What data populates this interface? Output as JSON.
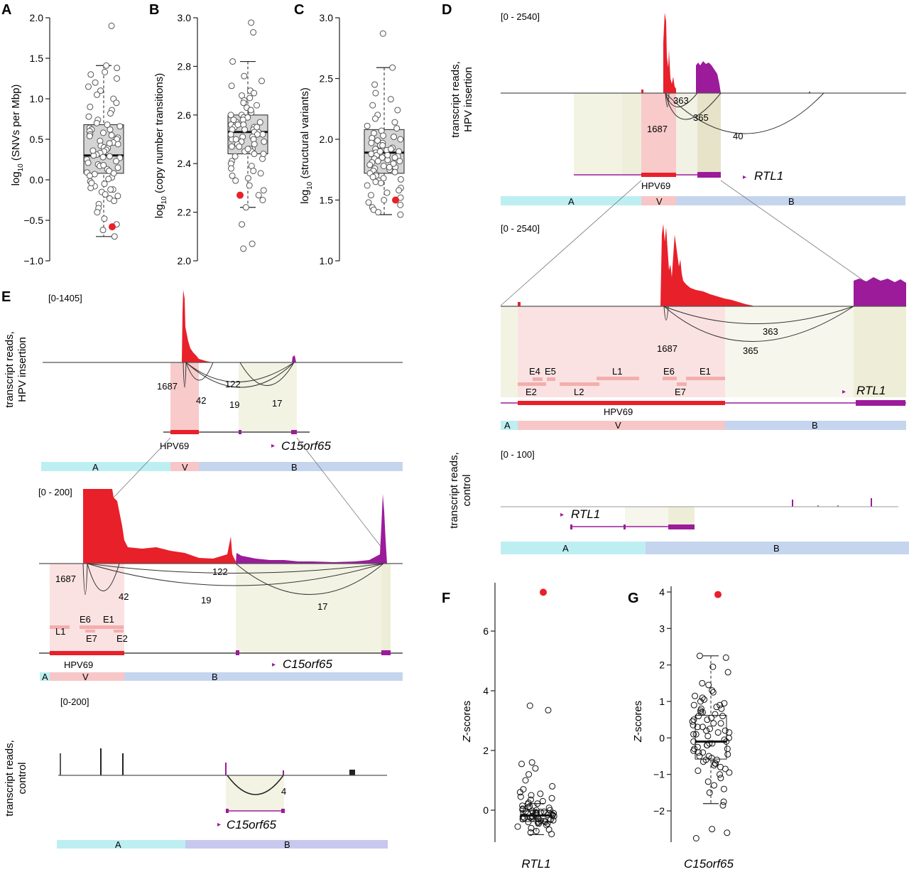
{
  "panels": {
    "A": {
      "letter": "A",
      "ylabel": "log",
      "ylabel_sub": "10",
      "ylabel_rest": " (SNVs per Mbp)",
      "ticks": [
        "2.0",
        "1.5",
        "1.0",
        "0.5",
        "0.0",
        "−0.5",
        "−1.0"
      ]
    },
    "B": {
      "letter": "B",
      "ylabel": "log",
      "ylabel_sub": "10",
      "ylabel_rest": " (copy number transitions)",
      "ticks": [
        "3.0",
        "2.8",
        "2.6",
        "2.4",
        "2.2",
        "2.0"
      ]
    },
    "C": {
      "letter": "C",
      "ylabel": "log",
      "ylabel_sub": "10",
      "ylabel_rest": " (structural variants)",
      "ticks": [
        "3.0",
        "2.5",
        "2.0",
        "1.5",
        "1.0"
      ]
    },
    "D": {
      "letter": "D",
      "track1_range": "[0 - 2540]",
      "track2_range": "[0 - 2540]",
      "track3_range": "[0 - 100]",
      "side1a": "transcript reads,",
      "side1b": "HPV insertion",
      "side2a": "transcript reads,",
      "side2b": "control",
      "junctions": [
        "363",
        "365",
        "40",
        "1687"
      ],
      "junctions_zoom": [
        "363",
        "365",
        "1687"
      ],
      "gene": "RTL1",
      "virus": "HPV69",
      "hpv_genes": [
        "E4",
        "E5",
        "L1",
        "E6",
        "E1",
        "E2",
        "L2",
        "E7"
      ],
      "segments": [
        "A",
        "V",
        "B"
      ]
    },
    "E": {
      "letter": "E",
      "track1_range": "[0-1405]",
      "track2_range": "[0 - 200]",
      "track3_range": "[0-200]",
      "side1a": "transcript reads,",
      "side1b": "HPV insertion",
      "side2a": "transcript reads,",
      "side2b": "control",
      "junctions": [
        "1687",
        "122",
        "42",
        "19",
        "17"
      ],
      "control_junction": "4",
      "gene": "C15orf65",
      "virus": "HPV69",
      "hpv_genes": [
        "L1",
        "E6",
        "E1",
        "E7",
        "E2"
      ],
      "segments": [
        "A",
        "V",
        "B"
      ]
    },
    "F": {
      "letter": "F",
      "ylabel": "Z-scores",
      "ylabel_italic": "Z",
      "ylabel_rest": "-scores",
      "ticks": [
        "6",
        "4",
        "2",
        "0"
      ],
      "xlabel": "RTL1"
    },
    "G": {
      "letter": "G",
      "ylabel": "Z-scores",
      "ylabel_italic": "Z",
      "ylabel_rest": "-scores",
      "ticks": [
        "4",
        "3",
        "2",
        "1",
        "0",
        "−1",
        "−2"
      ],
      "xlabel": "C15orf65"
    }
  },
  "colors": {
    "highlight": "#e8202a",
    "viral": "#e8202a",
    "gene": "#9b1b9b",
    "segA": "#bdeff2",
    "segV": "#f7c7c7",
    "segB": "#c5d5ee",
    "regionB": "#eeeed8",
    "regionV": "#fadede",
    "box": "#d4d4d4"
  },
  "chart_data": [
    {
      "type": "box",
      "panel": "A",
      "ylabel": "log10(SNVs per Mbp)",
      "ylim": [
        -1.0,
        2.0
      ],
      "box": {
        "q1": 0.08,
        "median": 0.3,
        "q3": 0.68,
        "whisker_low": -0.7,
        "whisker_high": 1.41
      },
      "highlight": -0.58,
      "points": [
        1.9,
        1.41,
        1.38,
        1.33,
        1.3,
        1.25,
        1.2,
        1.15,
        1.1,
        1.05,
        1.0,
        0.95,
        0.9,
        0.86,
        0.82,
        0.78,
        0.74,
        0.7,
        0.68,
        0.66,
        0.64,
        0.62,
        0.6,
        0.58,
        0.56,
        0.54,
        0.52,
        0.5,
        0.48,
        0.46,
        0.44,
        0.42,
        0.4,
        0.39,
        0.37,
        0.35,
        0.33,
        0.31,
        0.3,
        0.29,
        0.27,
        0.25,
        0.23,
        0.21,
        0.19,
        0.17,
        0.15,
        0.13,
        0.11,
        0.09,
        0.07,
        0.05,
        0.03,
        0.01,
        -0.02,
        -0.05,
        -0.08,
        -0.1,
        -0.12,
        -0.15,
        -0.18,
        -0.2,
        -0.23,
        -0.26,
        -0.3,
        -0.35,
        -0.4,
        -0.48,
        -0.55,
        -0.62,
        -0.7,
        0.62,
        0.55,
        0.45,
        0.36,
        0.28,
        0.18,
        0.08,
        -0.04,
        -0.12
      ]
    },
    {
      "type": "box",
      "panel": "B",
      "ylabel": "log10(copy number transitions)",
      "ylim": [
        2.0,
        3.0
      ],
      "box": {
        "q1": 2.44,
        "median": 2.53,
        "q3": 2.6,
        "whisker_low": 2.22,
        "whisker_high": 2.82
      },
      "highlight": 2.27,
      "points": [
        2.98,
        2.94,
        2.82,
        2.76,
        2.74,
        2.72,
        2.7,
        2.69,
        2.68,
        2.67,
        2.66,
        2.65,
        2.64,
        2.63,
        2.62,
        2.61,
        2.6,
        2.59,
        2.59,
        2.58,
        2.57,
        2.57,
        2.56,
        2.56,
        2.55,
        2.55,
        2.54,
        2.54,
        2.53,
        2.53,
        2.52,
        2.52,
        2.51,
        2.51,
        2.5,
        2.5,
        2.49,
        2.49,
        2.48,
        2.47,
        2.47,
        2.46,
        2.46,
        2.45,
        2.45,
        2.44,
        2.43,
        2.42,
        2.41,
        2.4,
        2.39,
        2.38,
        2.37,
        2.36,
        2.35,
        2.34,
        2.33,
        2.31,
        2.29,
        2.27,
        2.25,
        2.22,
        2.15,
        2.07,
        2.05,
        2.58,
        2.54,
        2.5,
        2.46,
        2.62,
        2.56,
        2.52,
        2.48,
        2.44,
        2.6,
        2.55
      ]
    },
    {
      "type": "box",
      "panel": "C",
      "ylabel": "log10(structural variants)",
      "ylim": [
        1.0,
        3.0
      ],
      "box": {
        "q1": 1.72,
        "median": 1.89,
        "q3": 2.08,
        "whisker_low": 1.38,
        "whisker_high": 2.59
      },
      "highlight": 1.5,
      "points": [
        2.87,
        2.59,
        2.45,
        2.38,
        2.33,
        2.28,
        2.24,
        2.2,
        2.17,
        2.14,
        2.11,
        2.09,
        2.07,
        2.05,
        2.03,
        2.01,
        1.99,
        1.97,
        1.95,
        1.93,
        1.92,
        1.91,
        1.9,
        1.89,
        1.88,
        1.87,
        1.86,
        1.85,
        1.84,
        1.83,
        1.82,
        1.81,
        1.8,
        1.79,
        1.78,
        1.77,
        1.76,
        1.75,
        1.74,
        1.73,
        1.72,
        1.71,
        1.7,
        1.69,
        1.68,
        1.67,
        1.66,
        1.65,
        1.64,
        1.62,
        1.6,
        1.58,
        1.56,
        1.54,
        1.52,
        1.5,
        1.48,
        1.46,
        1.44,
        1.42,
        1.4,
        1.38,
        2.0,
        1.95,
        1.9,
        1.85,
        1.8,
        2.02,
        1.97,
        1.92,
        1.87,
        1.82,
        1.77
      ]
    },
    {
      "type": "box",
      "panel": "F",
      "ylabel": "Z-scores",
      "xlabel": "RTL1",
      "ylim": [
        -1,
        7.5
      ],
      "box": {
        "q1": -0.38,
        "median": -0.18,
        "q3": -0.02,
        "whisker_low": -0.82,
        "whisker_high": 0.22
      },
      "highlight": 7.3,
      "points": [
        3.5,
        3.35,
        1.6,
        1.55,
        1.4,
        1.2,
        1.0,
        0.8,
        0.7,
        0.6,
        0.55,
        0.5,
        0.45,
        0.4,
        0.35,
        0.3,
        0.25,
        0.22,
        0.2,
        0.15,
        0.12,
        0.1,
        0.08,
        0.05,
        0.02,
        0.0,
        -0.02,
        -0.04,
        -0.06,
        -0.08,
        -0.1,
        -0.12,
        -0.14,
        -0.16,
        -0.18,
        -0.2,
        -0.22,
        -0.24,
        -0.26,
        -0.28,
        -0.3,
        -0.32,
        -0.34,
        -0.36,
        -0.38,
        -0.4,
        -0.42,
        -0.45,
        -0.5,
        -0.55,
        -0.6,
        -0.65,
        -0.7,
        -0.75,
        -0.8,
        -0.1,
        -0.15,
        -0.2,
        -0.25,
        -0.3,
        -0.05,
        0.0,
        -0.35,
        -0.12,
        -0.22,
        -0.28,
        -0.18,
        -0.08,
        -0.4,
        -0.45
      ]
    },
    {
      "type": "box",
      "panel": "G",
      "ylabel": "Z-scores",
      "xlabel": "C15orf65",
      "ylim": [
        -3,
        4.2
      ],
      "box": {
        "q1": -0.58,
        "median": -0.1,
        "q3": 0.62,
        "whisker_low": -1.8,
        "whisker_high": 2.25
      },
      "highlight": 3.93,
      "points": [
        2.25,
        2.2,
        1.95,
        1.8,
        1.5,
        1.45,
        1.3,
        1.25,
        1.15,
        1.05,
        1.0,
        0.95,
        0.9,
        0.85,
        0.8,
        0.75,
        0.7,
        0.65,
        0.6,
        0.55,
        0.5,
        0.45,
        0.4,
        0.35,
        0.3,
        0.25,
        0.2,
        0.15,
        0.1,
        0.05,
        0.0,
        -0.05,
        -0.1,
        -0.15,
        -0.2,
        -0.25,
        -0.3,
        -0.35,
        -0.4,
        -0.45,
        -0.5,
        -0.55,
        -0.6,
        -0.65,
        -0.7,
        -0.75,
        -0.8,
        -0.85,
        -0.9,
        -0.95,
        -1.0,
        -1.1,
        -1.2,
        -1.3,
        -1.4,
        -1.5,
        -1.75,
        -1.85,
        -2.5,
        -2.6,
        -2.75,
        0.5,
        0.3,
        0.1,
        -0.2,
        -0.4,
        0.7,
        0.9,
        -0.6,
        -0.1,
        0.2,
        -0.3,
        0.4,
        0.6,
        -0.5,
        -0.7,
        0.8,
        1.1,
        -0.15,
        0.15
      ]
    }
  ]
}
